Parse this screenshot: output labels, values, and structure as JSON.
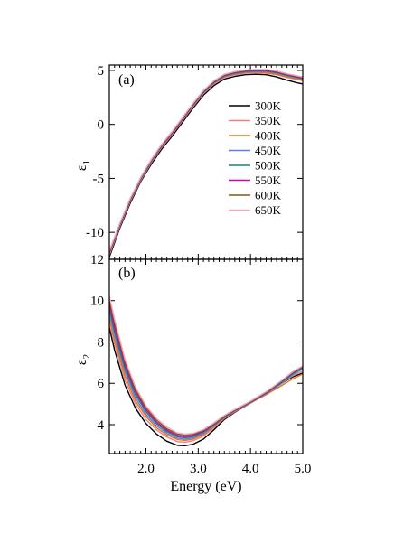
{
  "chart_data": [
    {
      "type": "line",
      "panel_label": "(a)",
      "ylabel_main": "ε",
      "ylabel_sub": "1",
      "xlim": [
        1.3,
        5.0
      ],
      "ylim": [
        -12.5,
        5.5
      ],
      "yticks": [
        -10,
        -5,
        0,
        5
      ],
      "ytick_labels": [
        "-10",
        "-5",
        "0",
        "5"
      ],
      "legend_position": "right",
      "series": [
        {
          "name": "300K",
          "color": "#000000",
          "x": [
            1.3,
            1.5,
            1.7,
            1.9,
            2.1,
            2.3,
            2.5,
            2.7,
            2.9,
            3.1,
            3.3,
            3.5,
            3.7,
            3.9,
            4.1,
            4.3,
            4.5,
            4.7,
            4.9,
            5.0
          ],
          "y": [
            -12.3,
            -9.6,
            -7.3,
            -5.3,
            -3.7,
            -2.3,
            -1.1,
            0.2,
            1.5,
            2.7,
            3.6,
            4.2,
            4.45,
            4.6,
            4.65,
            4.6,
            4.4,
            4.1,
            3.85,
            3.75
          ]
        },
        {
          "name": "350K",
          "color": "#f08080",
          "x": [
            1.3,
            1.5,
            1.7,
            1.9,
            2.1,
            2.3,
            2.5,
            2.7,
            2.9,
            3.1,
            3.3,
            3.5,
            3.7,
            3.9,
            4.1,
            4.3,
            4.5,
            4.7,
            4.9,
            5.0
          ],
          "y": [
            -12.1,
            -9.45,
            -7.15,
            -5.2,
            -3.55,
            -2.15,
            -0.95,
            0.35,
            1.65,
            2.85,
            3.75,
            4.35,
            4.6,
            4.75,
            4.8,
            4.75,
            4.6,
            4.35,
            4.15,
            4.05
          ]
        },
        {
          "name": "400K",
          "color": "#e8731e",
          "x": [
            1.3,
            1.5,
            1.7,
            1.9,
            2.1,
            2.3,
            2.5,
            2.7,
            2.9,
            3.1,
            3.3,
            3.5,
            3.7,
            3.9,
            4.1,
            4.3,
            4.5,
            4.7,
            4.9,
            5.0
          ],
          "y": [
            -12.0,
            -9.4,
            -7.1,
            -5.15,
            -3.5,
            -2.1,
            -0.9,
            0.4,
            1.7,
            2.9,
            3.8,
            4.4,
            4.65,
            4.8,
            4.85,
            4.8,
            4.65,
            4.4,
            4.2,
            4.1
          ]
        },
        {
          "name": "450K",
          "color": "#5b7fe8",
          "x": [
            1.3,
            1.5,
            1.7,
            1.9,
            2.1,
            2.3,
            2.5,
            2.7,
            2.9,
            3.1,
            3.3,
            3.5,
            3.7,
            3.9,
            4.1,
            4.3,
            4.5,
            4.7,
            4.9,
            5.0
          ],
          "y": [
            -11.9,
            -9.35,
            -7.05,
            -5.1,
            -3.45,
            -2.05,
            -0.85,
            0.45,
            1.75,
            2.95,
            3.85,
            4.45,
            4.7,
            4.85,
            4.9,
            4.9,
            4.75,
            4.5,
            4.3,
            4.2
          ]
        },
        {
          "name": "500K",
          "color": "#138a6a",
          "x": [
            1.3,
            1.5,
            1.7,
            1.9,
            2.1,
            2.3,
            2.5,
            2.7,
            2.9,
            3.1,
            3.3,
            3.5,
            3.7,
            3.9,
            4.1,
            4.3,
            4.5,
            4.7,
            4.9,
            5.0
          ],
          "y": [
            -11.85,
            -9.3,
            -7.0,
            -5.05,
            -3.4,
            -2.0,
            -0.8,
            0.5,
            1.8,
            3.0,
            3.9,
            4.5,
            4.75,
            4.9,
            4.95,
            4.95,
            4.8,
            4.55,
            4.35,
            4.25
          ]
        },
        {
          "name": "550K",
          "color": "#d400a8",
          "x": [
            1.3,
            1.5,
            1.7,
            1.9,
            2.1,
            2.3,
            2.5,
            2.7,
            2.9,
            3.1,
            3.3,
            3.5,
            3.7,
            3.9,
            4.1,
            4.3,
            4.5,
            4.7,
            4.9,
            5.0
          ],
          "y": [
            -11.8,
            -9.25,
            -6.95,
            -5.0,
            -3.35,
            -1.95,
            -0.75,
            0.55,
            1.85,
            3.05,
            3.95,
            4.55,
            4.8,
            4.95,
            5.0,
            5.0,
            4.85,
            4.6,
            4.4,
            4.3
          ]
        },
        {
          "name": "600K",
          "color": "#7a5a14",
          "x": [
            1.3,
            1.5,
            1.7,
            1.9,
            2.1,
            2.3,
            2.5,
            2.7,
            2.9,
            3.1,
            3.3,
            3.5,
            3.7,
            3.9,
            4.1,
            4.3,
            4.5,
            4.7,
            4.9,
            5.0
          ],
          "y": [
            -11.75,
            -9.2,
            -6.9,
            -4.95,
            -3.3,
            -1.9,
            -0.7,
            0.6,
            1.9,
            3.1,
            4.0,
            4.6,
            4.85,
            5.0,
            5.05,
            5.05,
            4.9,
            4.65,
            4.45,
            4.35
          ]
        },
        {
          "name": "650K",
          "color": "#f2a8c4",
          "x": [
            1.3,
            1.5,
            1.7,
            1.9,
            2.1,
            2.3,
            2.5,
            2.7,
            2.9,
            3.1,
            3.3,
            3.5,
            3.7,
            3.9,
            4.1,
            4.3,
            4.5,
            4.7,
            4.9,
            5.0
          ],
          "y": [
            -11.7,
            -9.15,
            -6.85,
            -4.9,
            -3.25,
            -1.85,
            -0.65,
            0.65,
            1.95,
            3.15,
            4.05,
            4.65,
            4.9,
            5.05,
            5.1,
            5.1,
            4.95,
            4.7,
            4.5,
            4.4
          ]
        }
      ]
    },
    {
      "type": "line",
      "panel_label": "(b)",
      "ylabel_main": "ε",
      "ylabel_sub": "2",
      "xlabel": "Energy (eV)",
      "xlim": [
        1.3,
        5.0
      ],
      "ylim": [
        2.6,
        12.0
      ],
      "xticks": [
        2.0,
        3.0,
        4.0,
        5.0
      ],
      "xtick_labels": [
        "2.0",
        "3.0",
        "4.0",
        "5.0"
      ],
      "yticks": [
        4,
        6,
        8,
        10,
        12
      ],
      "ytick_labels": [
        "4",
        "6",
        "8",
        "10",
        "12"
      ],
      "series": [
        {
          "name": "300K",
          "color": "#000000",
          "x": [
            1.3,
            1.4,
            1.6,
            1.8,
            2.0,
            2.2,
            2.4,
            2.6,
            2.75,
            2.9,
            3.1,
            3.3,
            3.5,
            3.7,
            4.0,
            4.3,
            4.6,
            4.8,
            5.0
          ],
          "y": [
            8.7,
            7.6,
            5.9,
            4.8,
            4.05,
            3.55,
            3.2,
            3.0,
            2.98,
            3.05,
            3.3,
            3.75,
            4.25,
            4.6,
            5.05,
            5.5,
            6.0,
            6.3,
            6.5
          ]
        },
        {
          "name": "350K",
          "color": "#f08080",
          "x": [
            1.3,
            1.4,
            1.6,
            1.8,
            2.0,
            2.2,
            2.4,
            2.6,
            2.75,
            2.9,
            3.1,
            3.3,
            3.5,
            3.7,
            4.0,
            4.3,
            4.6,
            4.8,
            5.0
          ],
          "y": [
            9.0,
            7.9,
            6.15,
            5.0,
            4.25,
            3.75,
            3.4,
            3.18,
            3.15,
            3.22,
            3.45,
            3.85,
            4.3,
            4.63,
            5.05,
            5.5,
            6.0,
            6.35,
            6.6
          ]
        },
        {
          "name": "400K",
          "color": "#e8731e",
          "x": [
            1.3,
            1.4,
            1.6,
            1.8,
            2.0,
            2.2,
            2.4,
            2.6,
            2.75,
            2.9,
            3.1,
            3.3,
            3.5,
            3.7,
            4.0,
            4.3,
            4.6,
            4.8,
            5.0
          ],
          "y": [
            9.2,
            8.1,
            6.35,
            5.15,
            4.4,
            3.85,
            3.5,
            3.28,
            3.24,
            3.3,
            3.52,
            3.9,
            4.32,
            4.65,
            5.05,
            5.45,
            5.9,
            6.2,
            6.45
          ]
        },
        {
          "name": "450K",
          "color": "#5b7fe8",
          "x": [
            1.3,
            1.4,
            1.6,
            1.8,
            2.0,
            2.2,
            2.4,
            2.6,
            2.75,
            2.9,
            3.1,
            3.3,
            3.5,
            3.7,
            4.0,
            4.3,
            4.6,
            4.8,
            5.0
          ],
          "y": [
            9.45,
            8.3,
            6.55,
            5.3,
            4.5,
            3.95,
            3.58,
            3.35,
            3.3,
            3.36,
            3.58,
            3.95,
            4.35,
            4.67,
            5.07,
            5.5,
            6.0,
            6.4,
            6.7
          ]
        },
        {
          "name": "500K",
          "color": "#138a6a",
          "x": [
            1.3,
            1.4,
            1.6,
            1.8,
            2.0,
            2.2,
            2.4,
            2.6,
            2.75,
            2.9,
            3.1,
            3.3,
            3.5,
            3.7,
            4.0,
            4.3,
            4.6,
            4.8,
            5.0
          ],
          "y": [
            9.65,
            8.5,
            6.7,
            5.45,
            4.62,
            4.05,
            3.66,
            3.42,
            3.37,
            3.42,
            3.63,
            3.98,
            4.37,
            4.68,
            5.08,
            5.52,
            6.05,
            6.45,
            6.75
          ]
        },
        {
          "name": "550K",
          "color": "#d400a8",
          "x": [
            1.3,
            1.4,
            1.6,
            1.8,
            2.0,
            2.2,
            2.4,
            2.6,
            2.75,
            2.9,
            3.1,
            3.3,
            3.5,
            3.7,
            4.0,
            4.3,
            4.6,
            4.8,
            5.0
          ],
          "y": [
            9.85,
            8.7,
            6.85,
            5.58,
            4.72,
            4.13,
            3.73,
            3.48,
            3.43,
            3.48,
            3.68,
            4.02,
            4.4,
            4.7,
            5.1,
            5.55,
            6.1,
            6.5,
            6.8
          ]
        },
        {
          "name": "600K",
          "color": "#7a5a14",
          "x": [
            1.3,
            1.4,
            1.6,
            1.8,
            2.0,
            2.2,
            2.4,
            2.6,
            2.75,
            2.9,
            3.1,
            3.3,
            3.5,
            3.7,
            4.0,
            4.3,
            4.6,
            4.8,
            5.0
          ],
          "y": [
            10.05,
            8.9,
            7.0,
            5.7,
            4.82,
            4.22,
            3.8,
            3.55,
            3.49,
            3.53,
            3.72,
            4.05,
            4.42,
            4.72,
            5.12,
            5.58,
            6.12,
            6.52,
            6.82
          ]
        },
        {
          "name": "650K",
          "color": "#f2a8c4",
          "x": [
            1.3,
            1.4,
            1.6,
            1.8,
            2.0,
            2.2,
            2.4,
            2.6,
            2.75,
            2.9,
            3.1,
            3.3,
            3.5,
            3.7,
            4.0,
            4.3,
            4.6,
            4.8,
            5.0
          ],
          "y": [
            10.25,
            9.1,
            7.15,
            5.82,
            4.92,
            4.3,
            3.88,
            3.6,
            3.54,
            3.58,
            3.76,
            4.08,
            4.45,
            4.74,
            5.14,
            5.6,
            6.15,
            6.55,
            6.85
          ]
        }
      ]
    }
  ]
}
